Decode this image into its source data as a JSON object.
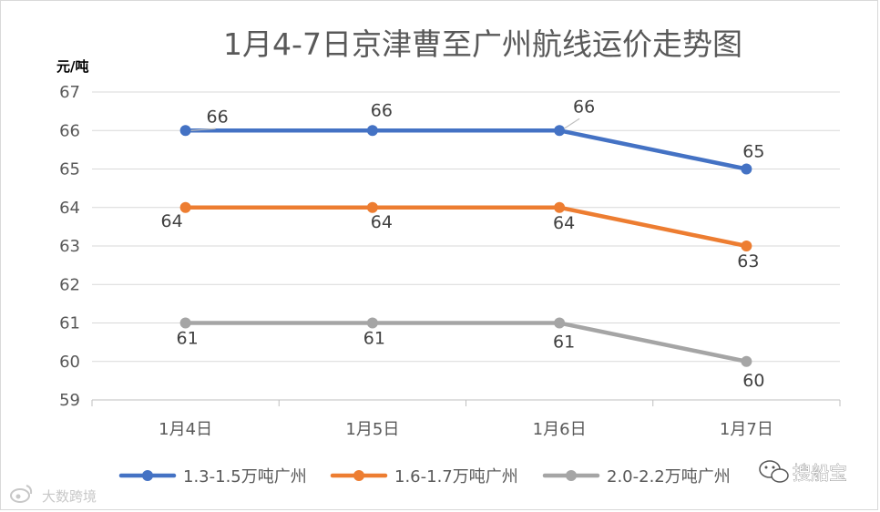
{
  "chart_data": {
    "type": "line",
    "title": "1月4-7日京津曹至广州航线运价走势图",
    "ylabel": "元/吨",
    "xlabel": "",
    "categories": [
      "1月4日",
      "1月5日",
      "1月6日",
      "1月7日"
    ],
    "ylim": [
      59,
      67
    ],
    "yticks": [
      "67",
      "66",
      "65",
      "64",
      "63",
      "62",
      "61",
      "60",
      "59"
    ],
    "grid": true,
    "legend_position": "bottom",
    "series": [
      {
        "name": "1.3-1.5万吨广州",
        "color": "#4472C4",
        "values": [
          66,
          66,
          66,
          65
        ],
        "labels": [
          "66",
          "66",
          "66",
          "65"
        ]
      },
      {
        "name": "1.6-1.7万吨广州",
        "color": "#ED7D31",
        "values": [
          64,
          64,
          64,
          63
        ],
        "labels": [
          "64",
          "64",
          "64",
          "63"
        ]
      },
      {
        "name": "2.0-2.2万吨广州",
        "color": "#A5A5A5",
        "values": [
          61,
          61,
          61,
          60
        ],
        "labels": [
          "61",
          "61",
          "61",
          "60"
        ]
      }
    ]
  },
  "watermarks": {
    "left": "大数跨境",
    "right": "搜船宝",
    "left_icon": "weibo-logo-icon",
    "right_icon": "wechat-logo-icon"
  }
}
